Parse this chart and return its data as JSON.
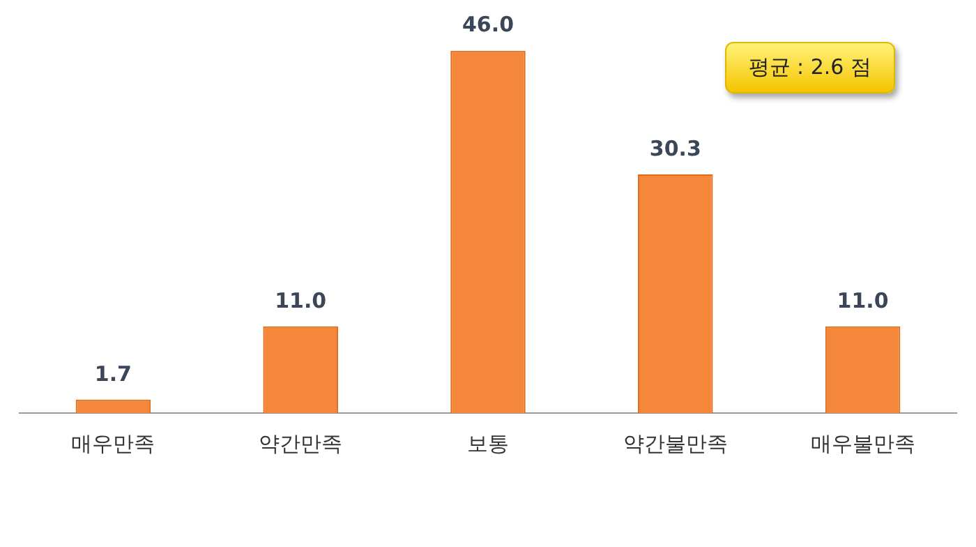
{
  "chart_data": {
    "type": "bar",
    "categories": [
      "매우만족",
      "약간만족",
      "보통",
      "약간불만족",
      "매우불만족"
    ],
    "values": [
      1.7,
      11.0,
      46.0,
      30.3,
      11.0
    ],
    "value_labels": [
      "1.7",
      "11.0",
      "46.0",
      "30.3",
      "11.0"
    ],
    "color": "#f5873a",
    "annotations": [
      "평균 : 2.6 점"
    ]
  }
}
